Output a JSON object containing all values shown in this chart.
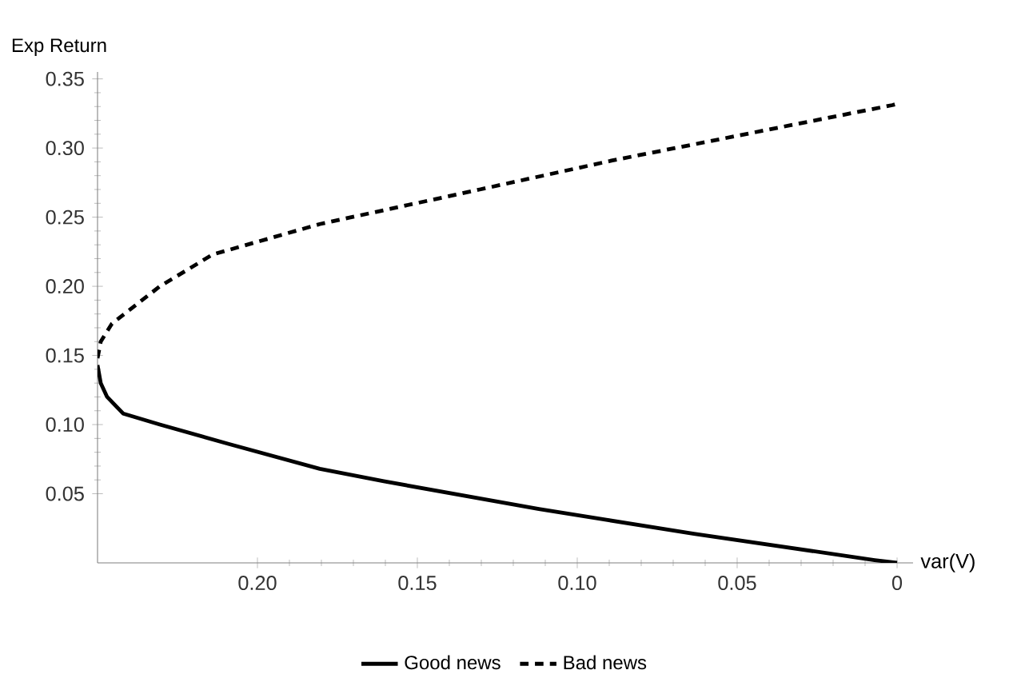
{
  "chart_data": {
    "type": "line",
    "xlabel": "var(V)",
    "ylabel": "Exp Return",
    "xlim": [
      0.25,
      -0.005
    ],
    "ylim": [
      0,
      0.355
    ],
    "xticks": [
      {
        "value": 0.2,
        "label": "0.20"
      },
      {
        "value": 0.15,
        "label": "0.15"
      },
      {
        "value": 0.1,
        "label": "0.10"
      },
      {
        "value": 0.05,
        "label": "0.05"
      },
      0
    ],
    "yticks": [
      0.05,
      {
        "value": 0.1,
        "label": "0.10"
      },
      0.15,
      {
        "value": 0.2,
        "label": "0.20"
      },
      0.25,
      {
        "value": 0.3,
        "label": "0.30"
      },
      0.35
    ],
    "legend": "bottom",
    "grid": false,
    "series": [
      {
        "name": "Good news",
        "color": "#000000",
        "line_style": "solid",
        "x": [
          0.25,
          0.249,
          0.247,
          0.242,
          0.2305,
          0.209,
          0.1805,
          0.1605,
          0.112,
          0.0905,
          0.0635,
          0.007,
          0
        ],
        "values": [
          0.143,
          0.13,
          0.12,
          0.108,
          0.1,
          0.086,
          0.068,
          0.059,
          0.039,
          0.031,
          0.021,
          0.002,
          0
        ]
      },
      {
        "name": "Bad news",
        "color": "#000000",
        "line_style": "dashed",
        "x": [
          0.25,
          0.249,
          0.2455,
          0.2305,
          0.214,
          0.1805,
          0.1305,
          0.089,
          0.0015,
          0
        ],
        "values": [
          0.148,
          0.16,
          0.173,
          0.2,
          0.223,
          0.245,
          0.27,
          0.291,
          0.331,
          0.332
        ]
      }
    ]
  }
}
